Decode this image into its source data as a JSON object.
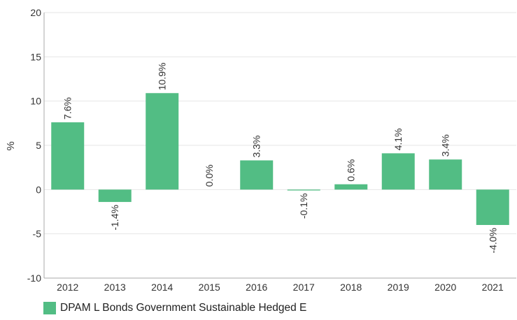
{
  "chart_data": {
    "type": "bar",
    "categories": [
      "2012",
      "2013",
      "2014",
      "2015",
      "2016",
      "2017",
      "2018",
      "2019",
      "2020",
      "2021"
    ],
    "series": [
      {
        "name": "DPAM L Bonds Government Sustainable Hedged E",
        "values": [
          7.6,
          -1.4,
          10.9,
          0.0,
          3.3,
          -0.1,
          0.6,
          4.1,
          3.4,
          -4.0
        ],
        "labels": [
          "7.6%",
          "-1.4%",
          "10.9%",
          "0.0%",
          "3.3%",
          "-0.1%",
          "0.6%",
          "4.1%",
          "3.4%",
          "-4.0%"
        ],
        "color": "#52bd84"
      }
    ],
    "ylabel": "%",
    "ylim": [
      -10,
      20
    ],
    "yticks": [
      -10,
      -5,
      0,
      5,
      10,
      15,
      20
    ],
    "ytick_labels": [
      "-10",
      "-5",
      "0",
      "5",
      "10",
      "15",
      "20"
    ],
    "grid": true,
    "legend_position": "bottom-left"
  }
}
